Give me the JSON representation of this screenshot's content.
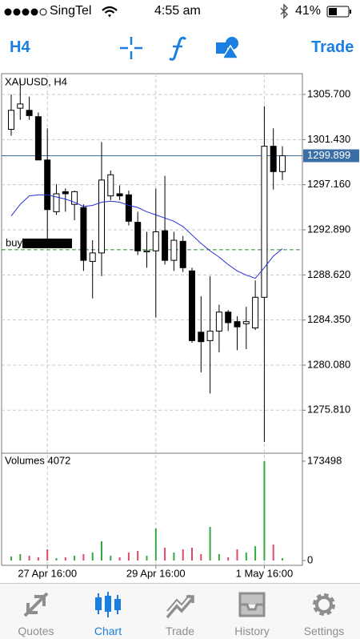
{
  "status_bar": {
    "carrier": "SingTel",
    "time": "4:55 am",
    "battery": "41%"
  },
  "toolbar": {
    "timeframe": "H4",
    "trade": "Trade"
  },
  "chart_data": {
    "type": "candlestick",
    "title": "XAUUSD, H4",
    "categories": [
      null,
      null,
      null,
      null,
      "27 Apr 16:00",
      null,
      null,
      null,
      null,
      null,
      null,
      null,
      null,
      null,
      null,
      null,
      "29 Apr 16:00",
      null,
      null,
      null,
      null,
      null,
      null,
      null,
      null,
      null,
      null,
      null,
      "1 May 16:00",
      null,
      null
    ],
    "open": [
      1302.4,
      1304.4,
      1304.2,
      1303.6,
      1299.5,
      1294.6,
      1296.5,
      1295.3,
      1295.0,
      1289.9,
      1290.7,
      1296.1,
      1296.3,
      1296.2,
      1293.6,
      1290.8,
      1290.9,
      1292.8,
      1290.0,
      1291.8,
      1289.0,
      1283.2,
      1282.4,
      1283.3,
      1285.1,
      1284.2,
      1284.0,
      1283.6,
      1286.5,
      1300.8,
      1298.4
    ],
    "close": [
      1304.2,
      1304.8,
      1303.7,
      1299.5,
      1294.8,
      1296.3,
      1296.3,
      1296.5,
      1290.0,
      1290.7,
      1297.6,
      1298.1,
      1296.1,
      1293.7,
      1290.9,
      1290.9,
      1292.7,
      1290.0,
      1291.9,
      1289.3,
      1282.4,
      1282.3,
      1283.3,
      1285.1,
      1284.1,
      1283.7,
      1284.2,
      1286.5,
      1300.8,
      1298.4,
      1299.9
    ],
    "high": [
      1305.7,
      1307.1,
      1305.5,
      1304.0,
      1302.5,
      1297.2,
      1296.8,
      1296.6,
      1295.3,
      1291.9,
      1301.2,
      1298.5,
      1297.1,
      1296.6,
      1294.6,
      1292.7,
      1296.8,
      1298.0,
      1292.7,
      1292.3,
      1289.3,
      1286.6,
      1288.5,
      1285.8,
      1285.3,
      1284.7,
      1285.6,
      1288.1,
      1304.6,
      1302.5,
      1300.8
    ],
    "low": [
      1301.8,
      1303.3,
      1303.3,
      1299.5,
      1291.9,
      1294.3,
      1294.6,
      1293.8,
      1289.0,
      1286.4,
      1288.5,
      1295.7,
      1295.7,
      1293.3,
      1290.5,
      1289.3,
      1284.6,
      1289.6,
      1289.0,
      1288.9,
      1282.2,
      1279.4,
      1277.4,
      1281.3,
      1283.3,
      1281.5,
      1281.6,
      1283.4,
      1272.8,
      1296.7,
      1297.6
    ],
    "ma": {
      "color": "#2430d8",
      "values": [
        1294.2,
        1295.3,
        1296.1,
        1296.2,
        1296.2,
        1296.0,
        1295.8,
        1295.5,
        1295.1,
        1295.2,
        1295.5,
        1295.6,
        1295.5,
        1295.2,
        1295.0,
        1294.6,
        1294.3,
        1294.0,
        1293.7,
        1293.2,
        1292.4,
        1291.6,
        1290.9,
        1290.3,
        1289.6,
        1289.0,
        1288.6,
        1288.3,
        1289.3,
        1290.4,
        1291.1
      ]
    },
    "up_color": "#ffffff",
    "down_color": "#000000",
    "ylim": [
      1271.74,
      1307.67
    ],
    "yticks": [
      {
        "value": 1305.7,
        "label": "1305.700"
      },
      {
        "value": 1301.43,
        "label": "1301.430"
      },
      {
        "value": 1297.16,
        "label": "1297.160"
      },
      {
        "value": 1292.89,
        "label": "1292.890"
      },
      {
        "value": 1288.62,
        "label": "1288.620"
      },
      {
        "value": 1284.35,
        "label": "1284.350"
      },
      {
        "value": 1280.08,
        "label": "1280.080"
      },
      {
        "value": 1275.81,
        "label": "1275.810"
      }
    ],
    "grid": true,
    "current_price": 1299.899,
    "current_price_color": "#3a6ea5",
    "buy_line": {
      "label": "buy",
      "value": 1291.0,
      "color": "#2e8b2e"
    },
    "volume_title": "Volumes 4072",
    "volumes": [
      7000,
      11200,
      8400,
      5600,
      19600,
      4200,
      5600,
      8400,
      11200,
      14000,
      33600,
      8400,
      5600,
      14000,
      16800,
      8400,
      56000,
      22400,
      14000,
      19600,
      22400,
      11200,
      58800,
      11200,
      5600,
      19600,
      14000,
      25200,
      173498,
      28000,
      4072
    ],
    "volume_up_color": "#35a845",
    "volume_down_color": "#e04a64",
    "volume_ylim": [
      -8400,
      187400
    ],
    "volume_ticks": [
      173498,
      0
    ]
  },
  "tab_bar": {
    "tabs": [
      "Quotes",
      "Chart",
      "Trade",
      "History",
      "Settings"
    ],
    "active": 1
  }
}
